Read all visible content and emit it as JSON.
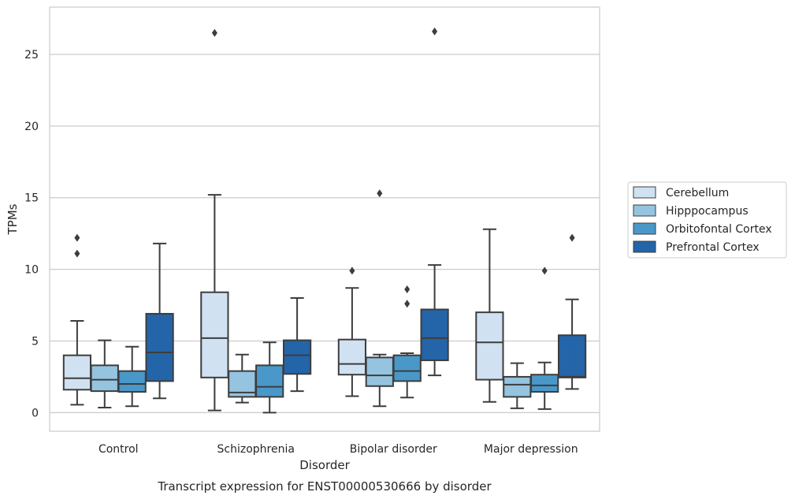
{
  "chart_data": {
    "type": "box",
    "caption": "Transcript expression for ENST00000530666 by disorder",
    "xlabel": "Disorder",
    "ylabel": "TPMs",
    "ylim": [
      -1.3,
      28.3
    ],
    "yticks": [
      0,
      5,
      10,
      15,
      20,
      25
    ],
    "grid": "horizontal",
    "legend_position": "right",
    "categories": [
      "Control",
      "Schizophrenia",
      "Bipolar disorder",
      "Major depression"
    ],
    "series": [
      {
        "name": "Cerebellum",
        "color": "#d0e1f2",
        "boxes": [
          {
            "whisker_low": 0.55,
            "q1": 1.6,
            "median": 2.4,
            "q3": 4.0,
            "whisker_high": 6.4,
            "outliers": [
              11.1,
              12.2
            ]
          },
          {
            "whisker_low": 0.15,
            "q1": 2.45,
            "median": 5.2,
            "q3": 8.4,
            "whisker_high": 15.2,
            "outliers": [
              26.5
            ]
          },
          {
            "whisker_low": 1.15,
            "q1": 2.65,
            "median": 3.4,
            "q3": 5.1,
            "whisker_high": 8.7,
            "outliers": [
              9.9
            ]
          },
          {
            "whisker_low": 0.75,
            "q1": 2.3,
            "median": 4.9,
            "q3": 7.0,
            "whisker_high": 12.8,
            "outliers": []
          }
        ]
      },
      {
        "name": "Hipppocampus",
        "color": "#94c4df",
        "boxes": [
          {
            "whisker_low": 0.35,
            "q1": 1.5,
            "median": 2.3,
            "q3": 3.3,
            "whisker_high": 5.05,
            "outliers": []
          },
          {
            "whisker_low": 0.7,
            "q1": 1.1,
            "median": 1.4,
            "q3": 2.9,
            "whisker_high": 4.05,
            "outliers": []
          },
          {
            "whisker_low": 0.45,
            "q1": 1.85,
            "median": 2.6,
            "q3": 3.85,
            "whisker_high": 4.05,
            "outliers": [
              15.3
            ]
          },
          {
            "whisker_low": 0.3,
            "q1": 1.1,
            "median": 1.95,
            "q3": 2.5,
            "whisker_high": 3.45,
            "outliers": []
          }
        ]
      },
      {
        "name": "Orbitofontal Cortex",
        "color": "#4a98c9",
        "boxes": [
          {
            "whisker_low": 0.45,
            "q1": 1.45,
            "median": 2.0,
            "q3": 2.9,
            "whisker_high": 4.6,
            "outliers": []
          },
          {
            "whisker_low": 0.0,
            "q1": 1.1,
            "median": 1.8,
            "q3": 3.3,
            "whisker_high": 4.9,
            "outliers": []
          },
          {
            "whisker_low": 1.05,
            "q1": 2.2,
            "median": 2.9,
            "q3": 4.0,
            "whisker_high": 4.15,
            "outliers": [
              7.6,
              8.6
            ]
          },
          {
            "whisker_low": 0.25,
            "q1": 1.45,
            "median": 1.9,
            "q3": 2.65,
            "whisker_high": 3.5,
            "outliers": [
              9.9
            ]
          }
        ]
      },
      {
        "name": "Prefrontal Cortex",
        "color": "#2464a8",
        "boxes": [
          {
            "whisker_low": 1.0,
            "q1": 2.2,
            "median": 4.2,
            "q3": 6.9,
            "whisker_high": 11.8,
            "outliers": []
          },
          {
            "whisker_low": 1.5,
            "q1": 2.7,
            "median": 4.0,
            "q3": 5.05,
            "whisker_high": 8.0,
            "outliers": []
          },
          {
            "whisker_low": 2.6,
            "q1": 3.65,
            "median": 5.2,
            "q3": 7.2,
            "whisker_high": 10.3,
            "outliers": [
              26.6
            ]
          },
          {
            "whisker_low": 1.65,
            "q1": 2.45,
            "median": 2.5,
            "q3": 5.4,
            "whisker_high": 7.9,
            "outliers": [
              12.2
            ]
          }
        ]
      }
    ]
  }
}
